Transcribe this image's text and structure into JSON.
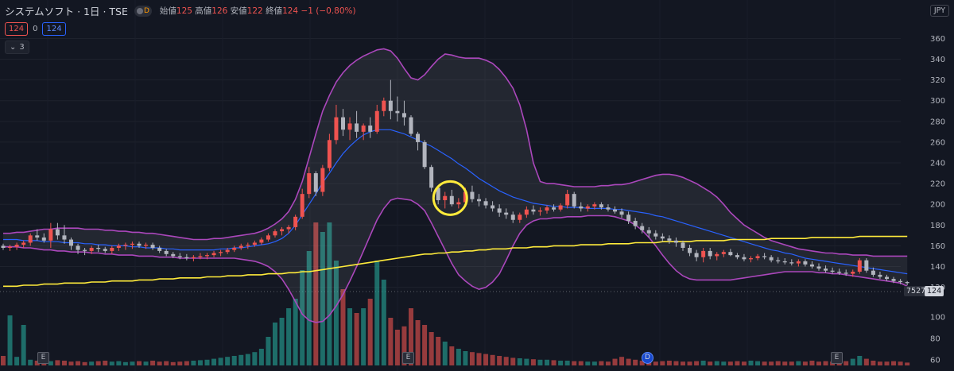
{
  "header": {
    "title": "システムソフト · 1日 · TSE",
    "badge_letter": "D",
    "ohlc": [
      {
        "label": "始値",
        "value": "125"
      },
      {
        "label": "高値",
        "value": "126"
      },
      {
        "label": "安値",
        "value": "122"
      },
      {
        "label": "終値",
        "value": "124"
      },
      {
        "label": "",
        "value": "−1 (−0.80%)"
      }
    ],
    "sell_price": "124",
    "spread": "0",
    "buy_price": "124",
    "indicators_count": "3"
  },
  "currency": "JPY",
  "price_axis": {
    "ticks": [
      "360",
      "340",
      "320",
      "300",
      "280",
      "260",
      "240",
      "220",
      "200",
      "180",
      "160",
      "140",
      "120"
    ],
    "volume_ticks": [
      "100",
      "80",
      "60"
    ],
    "last_value_label": "7527",
    "last_price_label": "124"
  },
  "markers": {
    "earnings": [
      "E",
      "E",
      "E"
    ],
    "dividend": "D"
  },
  "colors": {
    "background": "#131722",
    "up": "#ef5350",
    "down": "#b2b5be",
    "volume_up": "#26a69a",
    "volume_down": "#ef5350",
    "bollinger_bands": "#ab47bc",
    "bollinger_basis": "#2962ff",
    "moving_average": "#ffeb3b",
    "highlight_circle": "#ffeb3b"
  },
  "chart_data": {
    "type": "candlestick",
    "ylim": [
      112,
      368
    ],
    "xlabel": "",
    "ylabel": "",
    "candles": [
      [
        160,
        162,
        156,
        158
      ],
      [
        158,
        161,
        155,
        159
      ],
      [
        159,
        163,
        156,
        161
      ],
      [
        161,
        165,
        158,
        163
      ],
      [
        163,
        172,
        160,
        170
      ],
      [
        170,
        176,
        165,
        168
      ],
      [
        168,
        172,
        163,
        165
      ],
      [
        165,
        182,
        158,
        176
      ],
      [
        176,
        182,
        166,
        170
      ],
      [
        170,
        180,
        162,
        166
      ],
      [
        166,
        168,
        156,
        160
      ],
      [
        160,
        162,
        152,
        156
      ],
      [
        156,
        158,
        151,
        155
      ],
      [
        155,
        160,
        152,
        158
      ],
      [
        158,
        161,
        154,
        157
      ],
      [
        157,
        159,
        153,
        155
      ],
      [
        155,
        160,
        152,
        158
      ],
      [
        158,
        162,
        155,
        160
      ],
      [
        160,
        163,
        156,
        161
      ],
      [
        161,
        164,
        157,
        162
      ],
      [
        162,
        164,
        158,
        160
      ],
      [
        160,
        163,
        157,
        161
      ],
      [
        161,
        163,
        156,
        158
      ],
      [
        158,
        160,
        153,
        155
      ],
      [
        155,
        157,
        150,
        152
      ],
      [
        152,
        154,
        148,
        150
      ],
      [
        150,
        153,
        147,
        149
      ],
      [
        149,
        152,
        146,
        148
      ],
      [
        148,
        151,
        145,
        149
      ],
      [
        149,
        153,
        147,
        150
      ],
      [
        150,
        153,
        147,
        151
      ],
      [
        151,
        155,
        149,
        153
      ],
      [
        153,
        156,
        150,
        154
      ],
      [
        154,
        158,
        152,
        156
      ],
      [
        156,
        160,
        154,
        158
      ],
      [
        158,
        162,
        156,
        160
      ],
      [
        160,
        163,
        157,
        161
      ],
      [
        161,
        165,
        159,
        163
      ],
      [
        163,
        168,
        161,
        166
      ],
      [
        166,
        172,
        164,
        170
      ],
      [
        170,
        176,
        168,
        174
      ],
      [
        174,
        178,
        170,
        176
      ],
      [
        176,
        180,
        172,
        178
      ],
      [
        178,
        190,
        175,
        188
      ],
      [
        188,
        215,
        186,
        210
      ],
      [
        210,
        236,
        206,
        230
      ],
      [
        230,
        232,
        208,
        212
      ],
      [
        212,
        238,
        208,
        235
      ],
      [
        235,
        268,
        232,
        262
      ],
      [
        262,
        296,
        258,
        284
      ],
      [
        284,
        292,
        266,
        272
      ],
      [
        272,
        284,
        262,
        278
      ],
      [
        278,
        290,
        264,
        270
      ],
      [
        270,
        278,
        262,
        276
      ],
      [
        276,
        284,
        264,
        270
      ],
      [
        270,
        296,
        268,
        290
      ],
      [
        290,
        303,
        285,
        300
      ],
      [
        300,
        320,
        282,
        290
      ],
      [
        290,
        304,
        280,
        288
      ],
      [
        288,
        300,
        276,
        284
      ],
      [
        284,
        286,
        266,
        268
      ],
      [
        268,
        270,
        252,
        260
      ],
      [
        260,
        262,
        234,
        236
      ],
      [
        236,
        238,
        212,
        216
      ],
      [
        216,
        218,
        200,
        204
      ],
      [
        204,
        212,
        196,
        208
      ],
      [
        208,
        214,
        198,
        200
      ],
      [
        200,
        206,
        196,
        202
      ],
      [
        202,
        216,
        200,
        212
      ],
      [
        212,
        218,
        202,
        205
      ],
      [
        205,
        210,
        198,
        203
      ],
      [
        203,
        206,
        196,
        199
      ],
      [
        199,
        203,
        193,
        196
      ],
      [
        196,
        200,
        188,
        192
      ],
      [
        192,
        196,
        186,
        190
      ],
      [
        190,
        193,
        182,
        185
      ],
      [
        185,
        192,
        182,
        190
      ],
      [
        190,
        198,
        187,
        195
      ],
      [
        195,
        199,
        190,
        193
      ],
      [
        193,
        197,
        189,
        194
      ],
      [
        194,
        199,
        191,
        197
      ],
      [
        197,
        200,
        193,
        195
      ],
      [
        195,
        201,
        193,
        199
      ],
      [
        199,
        214,
        196,
        210
      ],
      [
        210,
        212,
        196,
        198
      ],
      [
        198,
        202,
        193,
        196
      ],
      [
        196,
        200,
        193,
        198
      ],
      [
        198,
        202,
        195,
        200
      ],
      [
        200,
        202,
        195,
        197
      ],
      [
        197,
        200,
        193,
        195
      ],
      [
        195,
        198,
        191,
        193
      ],
      [
        193,
        196,
        187,
        190
      ],
      [
        190,
        193,
        181,
        184
      ],
      [
        184,
        187,
        176,
        179
      ],
      [
        179,
        182,
        172,
        175
      ],
      [
        175,
        178,
        168,
        172
      ],
      [
        172,
        175,
        166,
        169
      ],
      [
        169,
        172,
        164,
        167
      ],
      [
        167,
        170,
        162,
        165
      ],
      [
        165,
        168,
        159,
        163
      ],
      [
        163,
        165,
        155,
        158
      ],
      [
        158,
        161,
        150,
        153
      ],
      [
        153,
        156,
        145,
        149
      ],
      [
        149,
        158,
        144,
        155
      ],
      [
        155,
        158,
        147,
        150
      ],
      [
        150,
        154,
        146,
        152
      ],
      [
        152,
        156,
        149,
        154
      ],
      [
        154,
        157,
        150,
        151
      ],
      [
        151,
        153,
        147,
        149
      ],
      [
        149,
        152,
        145,
        147
      ],
      [
        147,
        150,
        144,
        148
      ],
      [
        148,
        152,
        146,
        150
      ],
      [
        150,
        153,
        147,
        149
      ],
      [
        149,
        151,
        144,
        146
      ],
      [
        146,
        149,
        143,
        145
      ],
      [
        145,
        148,
        142,
        144
      ],
      [
        144,
        147,
        141,
        143
      ],
      [
        143,
        147,
        140,
        145
      ],
      [
        145,
        147,
        140,
        142
      ],
      [
        142,
        145,
        138,
        140
      ],
      [
        140,
        143,
        136,
        138
      ],
      [
        138,
        141,
        134,
        136
      ],
      [
        136,
        139,
        133,
        135
      ],
      [
        135,
        138,
        132,
        134
      ],
      [
        134,
        137,
        131,
        133
      ],
      [
        133,
        137,
        130,
        135
      ],
      [
        135,
        148,
        133,
        146
      ],
      [
        146,
        148,
        134,
        136
      ],
      [
        136,
        139,
        130,
        132
      ],
      [
        132,
        135,
        128,
        130
      ],
      [
        130,
        132,
        126,
        128
      ],
      [
        128,
        130,
        124,
        126
      ],
      [
        126,
        128,
        123,
        125
      ],
      [
        125,
        126,
        122,
        124
      ]
    ],
    "volume": [
      20,
      105,
      18,
      85,
      12,
      10,
      8,
      9,
      11,
      10,
      8,
      9,
      7,
      8,
      9,
      10,
      8,
      9,
      7,
      8,
      9,
      8,
      10,
      8,
      9,
      7,
      8,
      9,
      10,
      11,
      12,
      14,
      16,
      18,
      20,
      22,
      24,
      28,
      35,
      60,
      90,
      100,
      120,
      140,
      200,
      240,
      300,
      280,
      300,
      220,
      160,
      120,
      110,
      120,
      140,
      220,
      180,
      100,
      75,
      82,
      120,
      95,
      85,
      70,
      60,
      50,
      40,
      35,
      30,
      28,
      26,
      24,
      22,
      20,
      18,
      16,
      15,
      14,
      13,
      12,
      12,
      11,
      10,
      10,
      9,
      9,
      8,
      8,
      9,
      8,
      14,
      18,
      14,
      12,
      10,
      9,
      8,
      9,
      10,
      9,
      8,
      8,
      9,
      10,
      8,
      9,
      8,
      8,
      9,
      8,
      10,
      9,
      8,
      8,
      9,
      8,
      8,
      9,
      8,
      10,
      8,
      9,
      8,
      8,
      9,
      14,
      20,
      14,
      10,
      8,
      8,
      9,
      8,
      6
    ],
    "bollinger_upper": [
      172,
      172,
      173,
      173,
      174,
      175,
      176,
      176,
      177,
      177,
      177,
      177,
      176,
      176,
      176,
      175,
      175,
      174,
      174,
      173,
      173,
      172,
      172,
      171,
      170,
      169,
      168,
      167,
      166,
      166,
      166,
      167,
      167,
      168,
      169,
      170,
      171,
      172,
      174,
      177,
      181,
      186,
      193,
      205,
      222,
      245,
      268,
      290,
      305,
      318,
      327,
      334,
      339,
      343,
      346,
      349,
      350,
      348,
      341,
      331,
      322,
      320,
      325,
      333,
      340,
      345,
      344,
      342,
      341,
      341,
      341,
      339,
      336,
      330,
      322,
      312,
      296,
      272,
      240,
      222,
      220,
      220,
      219,
      218,
      217,
      217,
      217,
      217,
      218,
      218,
      219,
      219,
      220,
      222,
      224,
      226,
      228,
      229,
      229,
      228,
      226,
      223,
      220,
      216,
      212,
      207,
      200,
      192,
      186,
      180,
      176,
      172,
      168,
      165,
      163,
      161,
      159,
      157,
      156,
      155,
      154,
      153,
      153,
      152,
      152,
      151,
      151,
      151,
      150,
      150,
      150,
      150,
      150,
      150
    ],
    "bollinger_basis": [
      166,
      166,
      166,
      165,
      165,
      165,
      164,
      164,
      164,
      163,
      163,
      163,
      162,
      162,
      161,
      161,
      160,
      160,
      160,
      159,
      159,
      158,
      158,
      158,
      157,
      157,
      156,
      156,
      156,
      156,
      156,
      156,
      157,
      157,
      158,
      158,
      159,
      160,
      161,
      162,
      164,
      167,
      172,
      180,
      190,
      200,
      210,
      221,
      230,
      240,
      249,
      256,
      262,
      267,
      270,
      272,
      272,
      272,
      270,
      268,
      265,
      262,
      259,
      256,
      252,
      248,
      244,
      239,
      235,
      230,
      225,
      221,
      217,
      213,
      210,
      207,
      205,
      203,
      201,
      200,
      199,
      198,
      198,
      197,
      197,
      197,
      196,
      196,
      196,
      196,
      195,
      195,
      194,
      193,
      192,
      191,
      189,
      188,
      186,
      184,
      182,
      180,
      178,
      176,
      174,
      172,
      170,
      168,
      166,
      164,
      162,
      160,
      158,
      156,
      155,
      153,
      152,
      150,
      148,
      147,
      146,
      145,
      144,
      143,
      142,
      141,
      140,
      139,
      138,
      137,
      136,
      135,
      134,
      133
    ],
    "bollinger_lower": [
      159,
      159,
      159,
      158,
      158,
      157,
      156,
      156,
      155,
      155,
      154,
      154,
      154,
      153,
      153,
      152,
      152,
      151,
      151,
      151,
      150,
      150,
      150,
      149,
      149,
      149,
      148,
      148,
      148,
      148,
      148,
      148,
      148,
      148,
      148,
      147,
      146,
      145,
      143,
      140,
      135,
      128,
      118,
      106,
      94,
      88,
      86,
      87,
      93,
      102,
      113,
      126,
      140,
      155,
      170,
      185,
      196,
      204,
      206,
      205,
      204,
      200,
      194,
      182,
      169,
      156,
      143,
      132,
      126,
      121,
      118,
      120,
      125,
      133,
      146,
      160,
      172,
      180,
      184,
      186,
      186,
      187,
      187,
      188,
      188,
      188,
      189,
      189,
      189,
      189,
      188,
      186,
      184,
      180,
      175,
      168,
      160,
      151,
      143,
      136,
      131,
      128,
      127,
      127,
      127,
      127,
      127,
      127,
      128,
      129,
      130,
      131,
      132,
      133,
      134,
      135,
      135,
      135,
      135,
      135,
      134,
      134,
      133,
      133,
      132,
      131,
      130,
      129,
      128,
      127,
      126,
      125,
      124,
      121
    ],
    "moving_average": [
      121,
      121,
      121,
      122,
      122,
      122,
      123,
      123,
      123,
      124,
      124,
      124,
      124,
      125,
      125,
      125,
      126,
      126,
      126,
      126,
      127,
      127,
      127,
      128,
      128,
      128,
      129,
      129,
      129,
      129,
      130,
      130,
      130,
      131,
      131,
      131,
      132,
      132,
      132,
      133,
      133,
      133,
      134,
      134,
      135,
      135,
      136,
      137,
      138,
      139,
      140,
      141,
      142,
      143,
      144,
      145,
      146,
      147,
      148,
      149,
      150,
      151,
      152,
      152,
      153,
      153,
      154,
      154,
      155,
      155,
      156,
      156,
      157,
      157,
      157,
      158,
      158,
      158,
      159,
      159,
      159,
      160,
      160,
      160,
      160,
      161,
      161,
      161,
      161,
      162,
      162,
      162,
      162,
      163,
      163,
      163,
      163,
      164,
      164,
      164,
      164,
      164,
      165,
      165,
      165,
      165,
      165,
      166,
      166,
      166,
      166,
      166,
      166,
      167,
      167,
      167,
      167,
      167,
      167,
      168,
      168,
      168,
      168,
      168,
      168,
      168,
      169,
      169,
      169,
      169,
      169,
      169,
      169,
      169
    ],
    "highlight_index": 66
  }
}
